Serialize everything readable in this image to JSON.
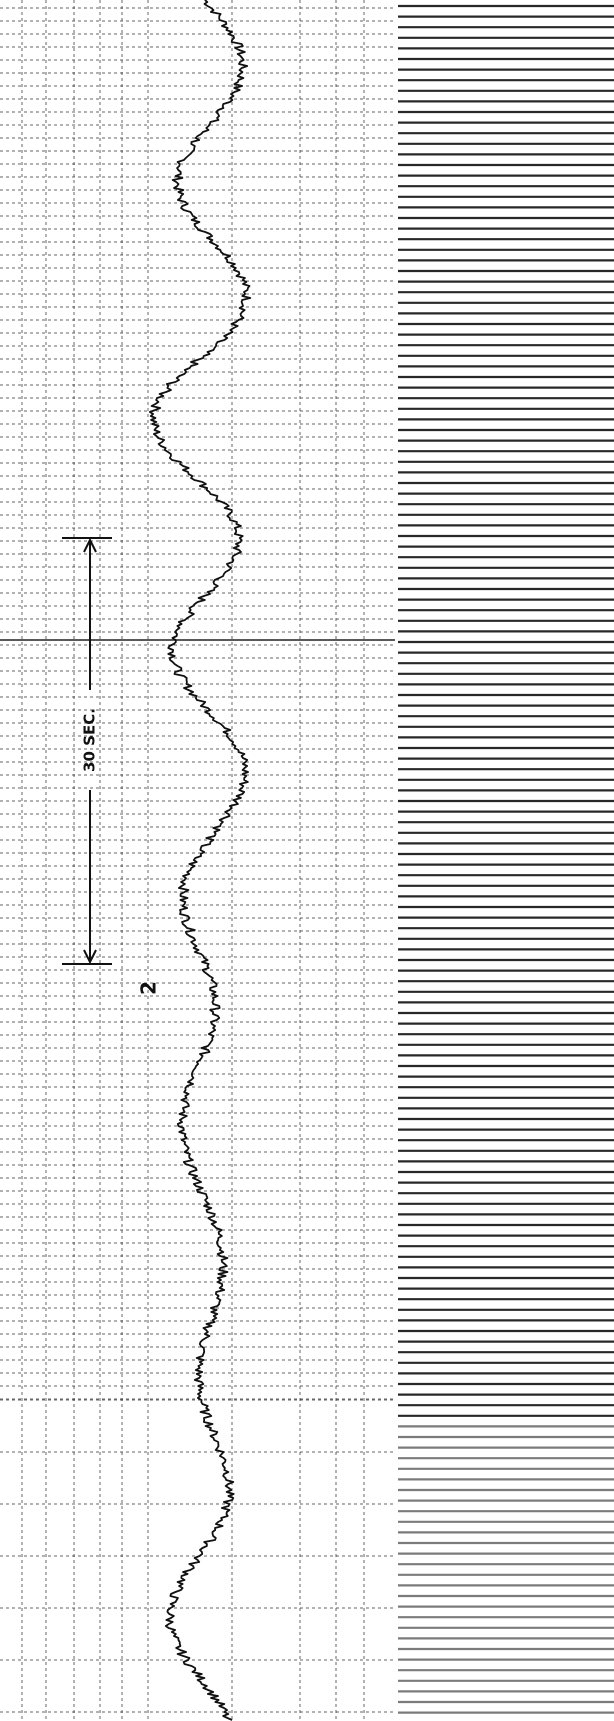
{
  "annotations": {
    "scale_label": "30 SEC.",
    "trace_marker": "2"
  }
}
